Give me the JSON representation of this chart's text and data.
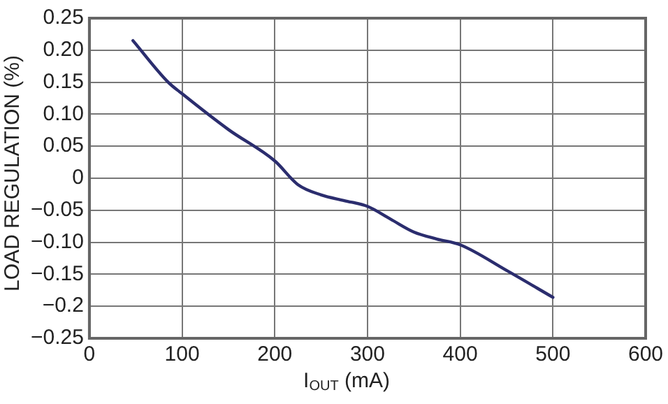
{
  "chart_data": {
    "type": "line",
    "xlabel": "I$_{OUT}$ (mA)",
    "ylabel": "LOAD REGULATION (%)",
    "x": [
      47,
      85,
      100,
      150,
      200,
      225,
      250,
      275,
      300,
      325,
      350,
      375,
      400,
      450,
      500
    ],
    "series": [
      {
        "color": "#2b2d6e",
        "values": [
          0.215,
          0.15,
          0.132,
          0.076,
          0.027,
          -0.01,
          -0.026,
          -0.035,
          -0.044,
          -0.064,
          -0.084,
          -0.095,
          -0.104,
          -0.144,
          -0.186
        ]
      }
    ],
    "xlim": [
      0,
      600
    ],
    "xticks": [
      0,
      100,
      200,
      300,
      400,
      500,
      600
    ],
    "ylim": [
      -0.25,
      0.25
    ],
    "yticks": [
      {
        "value": -0.25,
        "label": "−0.25"
      },
      {
        "value": -0.2,
        "label": "−0.2"
      },
      {
        "value": -0.15,
        "label": "−0.15"
      },
      {
        "value": -0.1,
        "label": "−0.10"
      },
      {
        "value": -0.05,
        "label": "−0.05"
      },
      0,
      {
        "value": 0.05,
        "label": "0.05"
      },
      {
        "value": 0.1,
        "label": "0.10"
      },
      {
        "value": 0.15,
        "label": "0.15"
      },
      {
        "value": 0.2,
        "label": "0.20"
      },
      0.25
    ],
    "grid": true,
    "marker": "none",
    "line_style": "solid"
  }
}
